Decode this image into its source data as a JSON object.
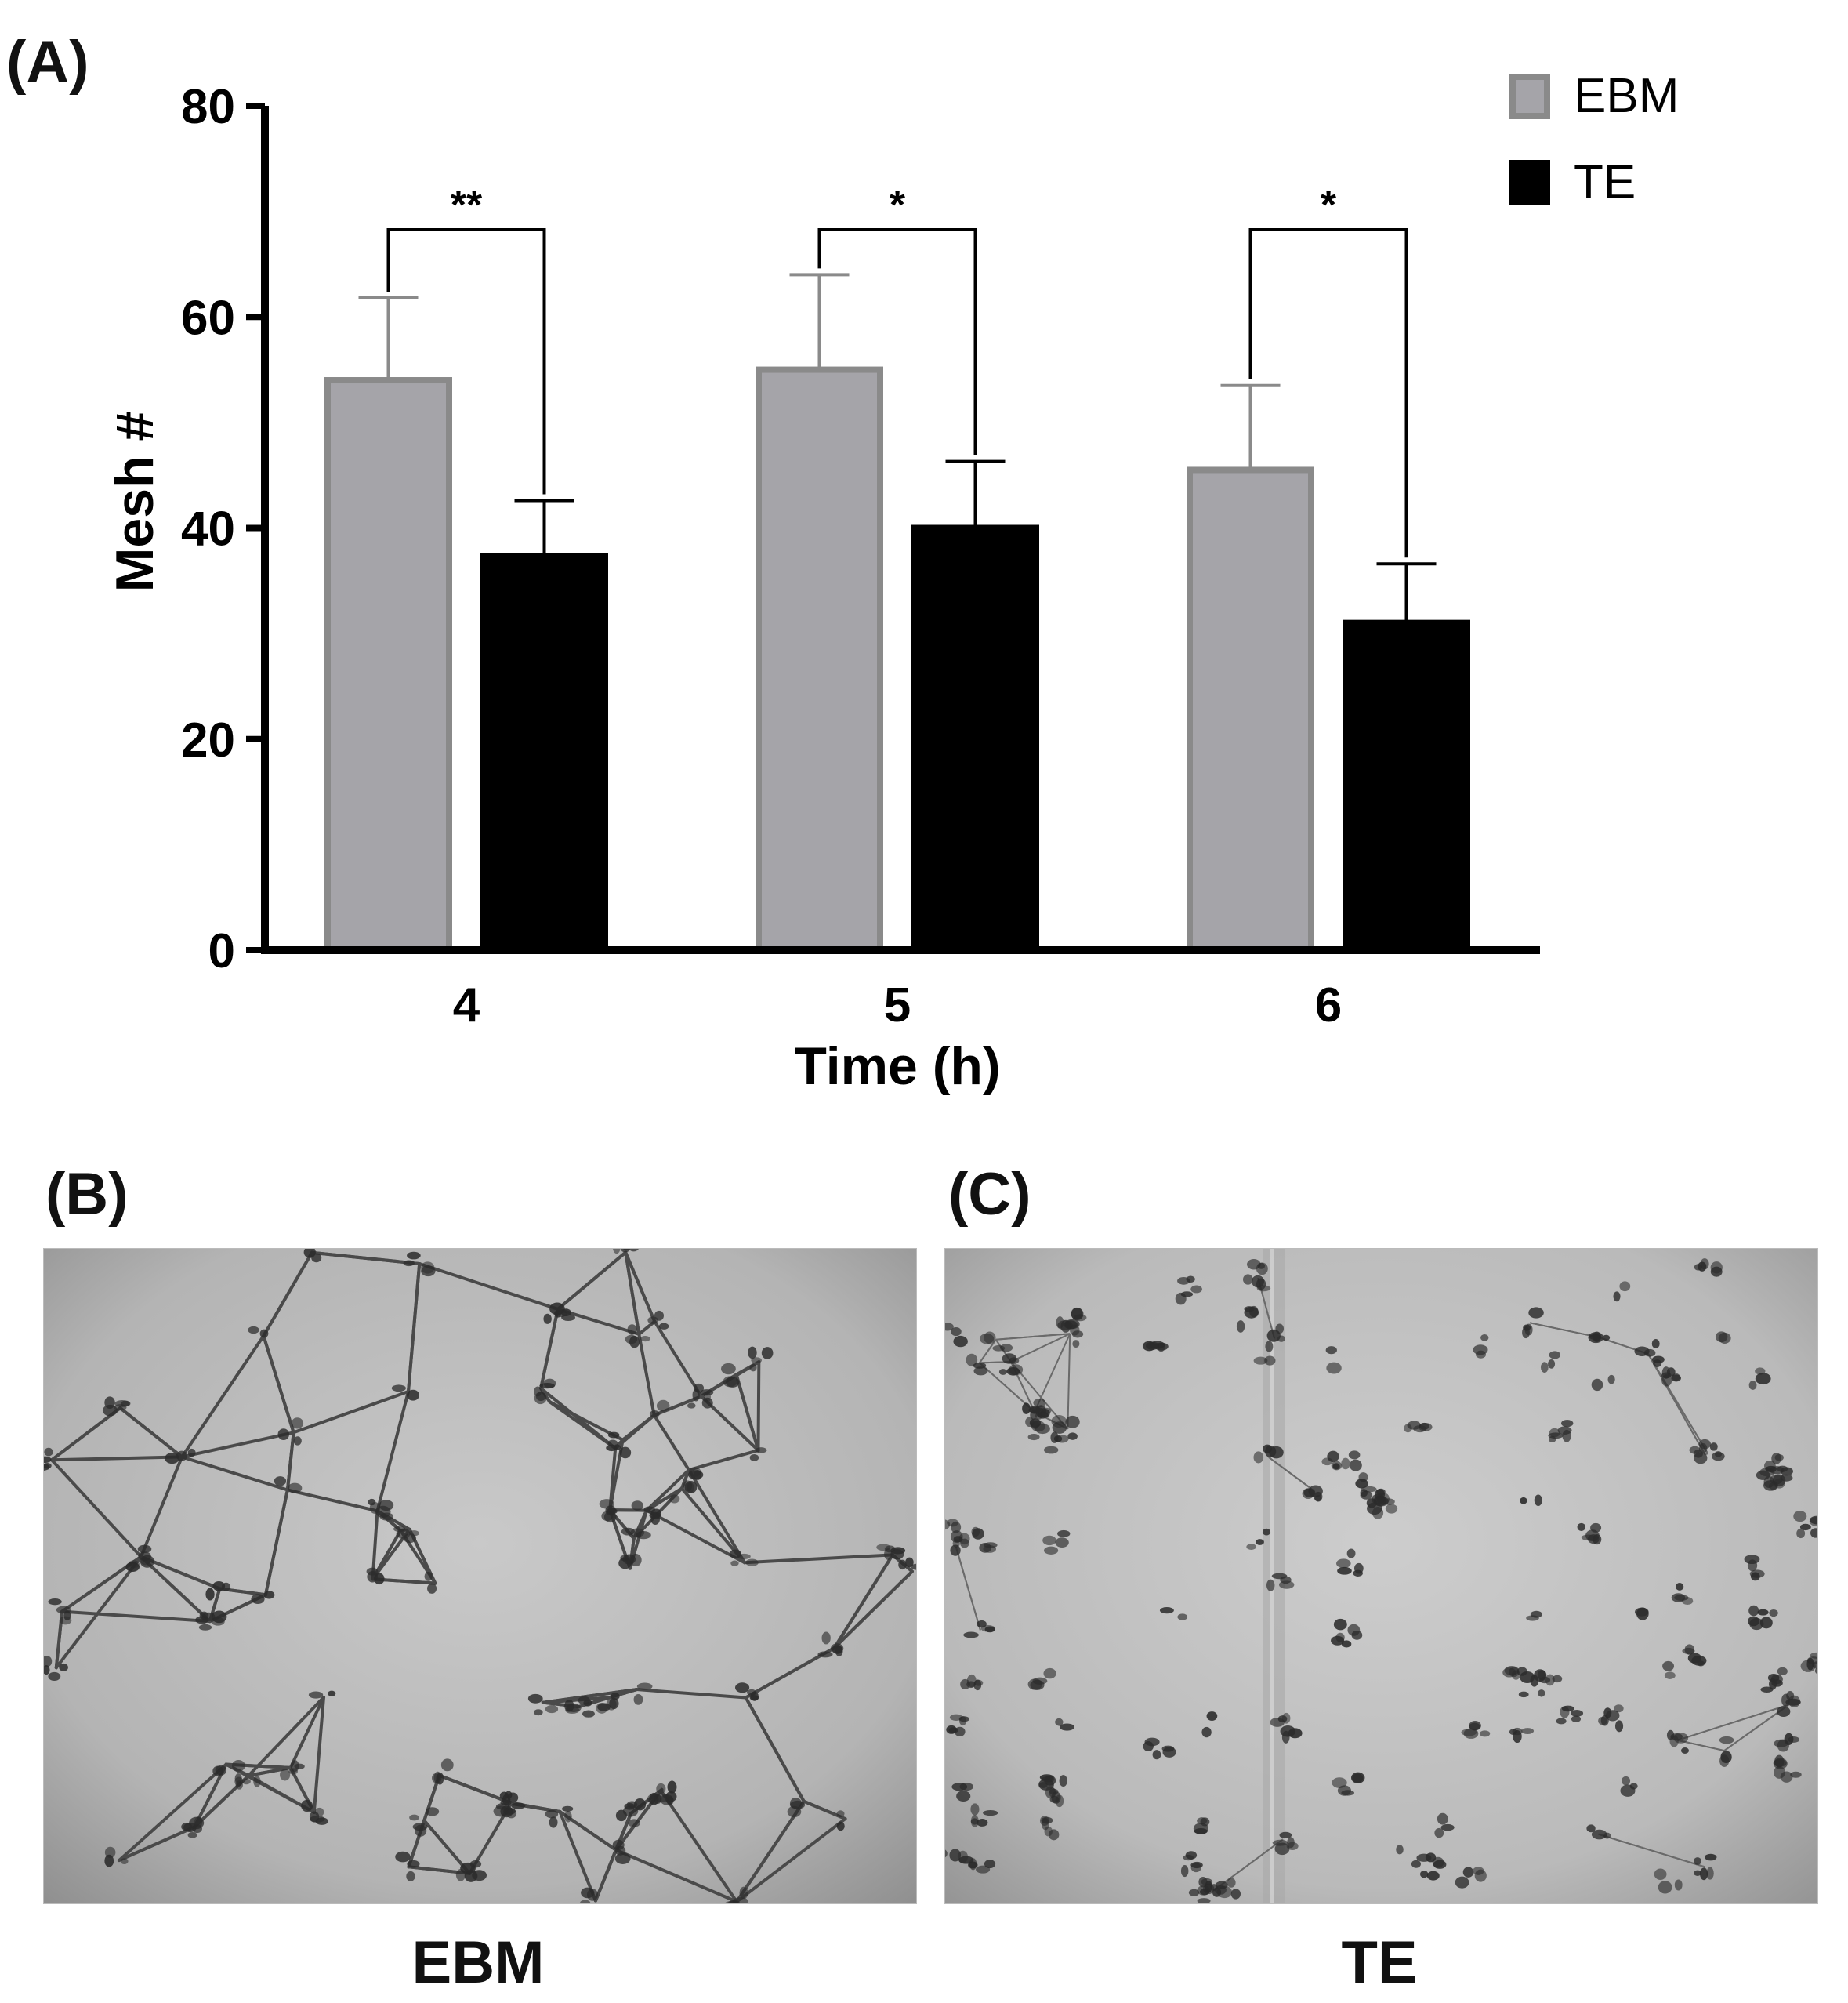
{
  "panels": {
    "a_label": "(A)",
    "b_label": "(B)",
    "c_label": "(C)",
    "b_caption": "EBM",
    "c_caption": "TE"
  },
  "chart_data": {
    "type": "bar",
    "categories": [
      "4",
      "5",
      "6"
    ],
    "xlabel": "Time (h)",
    "ylabel": "Mesh #",
    "ylim": [
      0,
      80
    ],
    "yticks": [
      0,
      20,
      40,
      60,
      80
    ],
    "legend_position": "top-right",
    "grid": false,
    "series": [
      {
        "name": "EBM",
        "values": [
          54,
          55,
          45.5
        ],
        "errors": [
          7.8,
          9,
          8
        ],
        "color": "#a5a4a9",
        "edge": "#8a8a8a"
      },
      {
        "name": "TE",
        "values": [
          37.3,
          40,
          31
        ],
        "errors": [
          5.3,
          6.3,
          5.6
        ],
        "color": "#000000",
        "edge": "#000000"
      }
    ],
    "annotations": [
      {
        "category": "4",
        "text": "**"
      },
      {
        "category": "5",
        "text": "*"
      },
      {
        "category": "6",
        "text": "*"
      }
    ]
  }
}
